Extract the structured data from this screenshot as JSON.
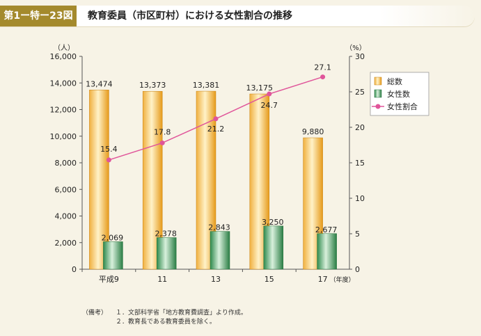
{
  "figure": {
    "label": "第1ー特ー23図",
    "title": "教育委員（市区町村）における女性割合の推移"
  },
  "chart_data": {
    "type": "bar",
    "categories": [
      "平成9",
      "11",
      "13",
      "15",
      "17"
    ],
    "x_unit": "（年度）",
    "y_left": {
      "unit": "（人）",
      "lim": [
        0,
        16000
      ],
      "ticks": [
        "0",
        "2,000",
        "4,000",
        "6,000",
        "8,000",
        "10,000",
        "12,000",
        "14,000",
        "16,000"
      ]
    },
    "y_right": {
      "unit": "（%）",
      "lim": [
        0,
        30
      ],
      "ticks": [
        "0",
        "5",
        "10",
        "15",
        "20",
        "25",
        "30"
      ]
    },
    "series": [
      {
        "name": "総数",
        "type": "bar",
        "axis": "left",
        "color": "#e8a020",
        "values": [
          13474,
          13373,
          13381,
          13175,
          9880
        ],
        "labels": [
          "13,474",
          "13,373",
          "13,381",
          "13,175",
          "9,880"
        ]
      },
      {
        "name": "女性数",
        "type": "bar",
        "axis": "left",
        "color": "#3a9a5a",
        "values": [
          2069,
          2378,
          2843,
          3250,
          2677
        ],
        "labels": [
          "2,069",
          "2,378",
          "2,843",
          "3,250",
          "2,677"
        ]
      },
      {
        "name": "女性割合",
        "type": "line",
        "axis": "right",
        "color": "#e0559a",
        "values": [
          15.4,
          17.8,
          21.2,
          24.7,
          27.1
        ],
        "labels": [
          "15.4",
          "17.8",
          "21.2",
          "24.7",
          "27.1"
        ]
      }
    ],
    "grid": false,
    "legend_position": "top-right"
  },
  "notes": {
    "lead": "（備考）",
    "lines": [
      "１．文部科学省「地方教育費調査」より作成。",
      "２．教育長である教育委員を除く。"
    ]
  }
}
